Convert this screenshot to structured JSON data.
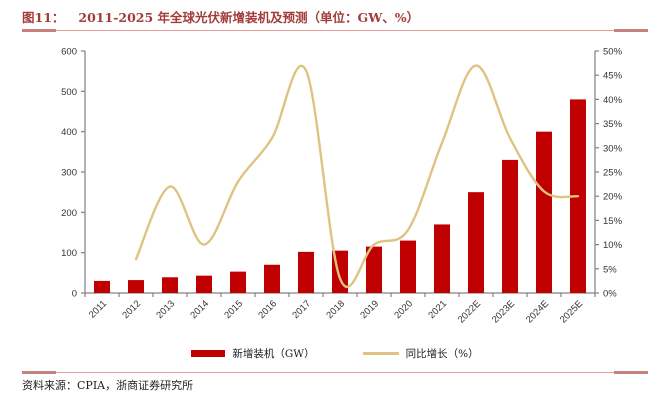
{
  "header": {
    "figure_label": "图11：",
    "title": "2011-2025 年全球光伏新增装机及预测（单位：GW、%）"
  },
  "footer": {
    "source_label": "资料来源：",
    "source_text": "CPIA，浙商证券研究所"
  },
  "colors": {
    "bar": "#C00000",
    "line": "#DFC383",
    "title_red": "#A33C39",
    "rule_thin": "#E89C98",
    "rule_thick": "#C8827E",
    "axis": "#808080",
    "tick_text": "#333333"
  },
  "chart_data": {
    "type": "bar",
    "categories": [
      "2011",
      "2012",
      "2013",
      "2014",
      "2015",
      "2016",
      "2017",
      "2018",
      "2019",
      "2020",
      "2021",
      "2022E",
      "2023E",
      "2024E",
      "2025E"
    ],
    "series": [
      {
        "name": "新增装机（GW）",
        "type": "bar",
        "axis": "left",
        "color": "#C00000",
        "values": [
          30,
          32,
          39,
          43,
          53,
          70,
          102,
          105,
          115,
          130,
          170,
          250,
          330,
          400,
          480
        ]
      },
      {
        "name": "同比增长（%）",
        "type": "line",
        "axis": "right",
        "color": "#DFC383",
        "values": [
          null,
          7,
          22,
          10,
          23,
          32,
          46,
          3,
          10,
          13,
          31,
          47,
          32,
          21,
          20
        ]
      }
    ],
    "left_axis": {
      "min": 0,
      "max": 600,
      "step": 100,
      "ticks": [
        "0",
        "100",
        "200",
        "300",
        "400",
        "500",
        "600"
      ]
    },
    "right_axis": {
      "min": 0,
      "max": 50,
      "step": 5,
      "ticks": [
        "0%",
        "5%",
        "10%",
        "15%",
        "20%",
        "25%",
        "30%",
        "35%",
        "40%",
        "45%",
        "50%"
      ]
    },
    "grid": false,
    "legend_position": "bottom",
    "title": "2011-2025 年全球光伏新增装机及预测（单位：GW、%）"
  }
}
